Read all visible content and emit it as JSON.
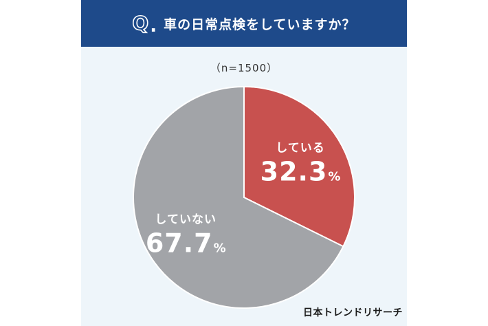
{
  "header": {
    "q_mark": "Q",
    "q_dot": ".",
    "question": "車の日常点検をしていますか？"
  },
  "sample_size": "（n=1500）",
  "brand": "日本トレンドリサーチ",
  "colors": {
    "header_bg": "#1e4a8a",
    "card_bg": "#eef5fa",
    "yes_slice": "#c8514f",
    "no_slice": "#a2a4a8"
  },
  "chart_data": {
    "type": "pie",
    "slices": [
      {
        "label": "している",
        "value": 32.3,
        "value_text": "32.3",
        "unit": "%",
        "color": "#c8514f"
      },
      {
        "label": "していない",
        "value": 67.7,
        "value_text": "67.7",
        "unit": "%",
        "color": "#a2a4a8"
      }
    ]
  }
}
